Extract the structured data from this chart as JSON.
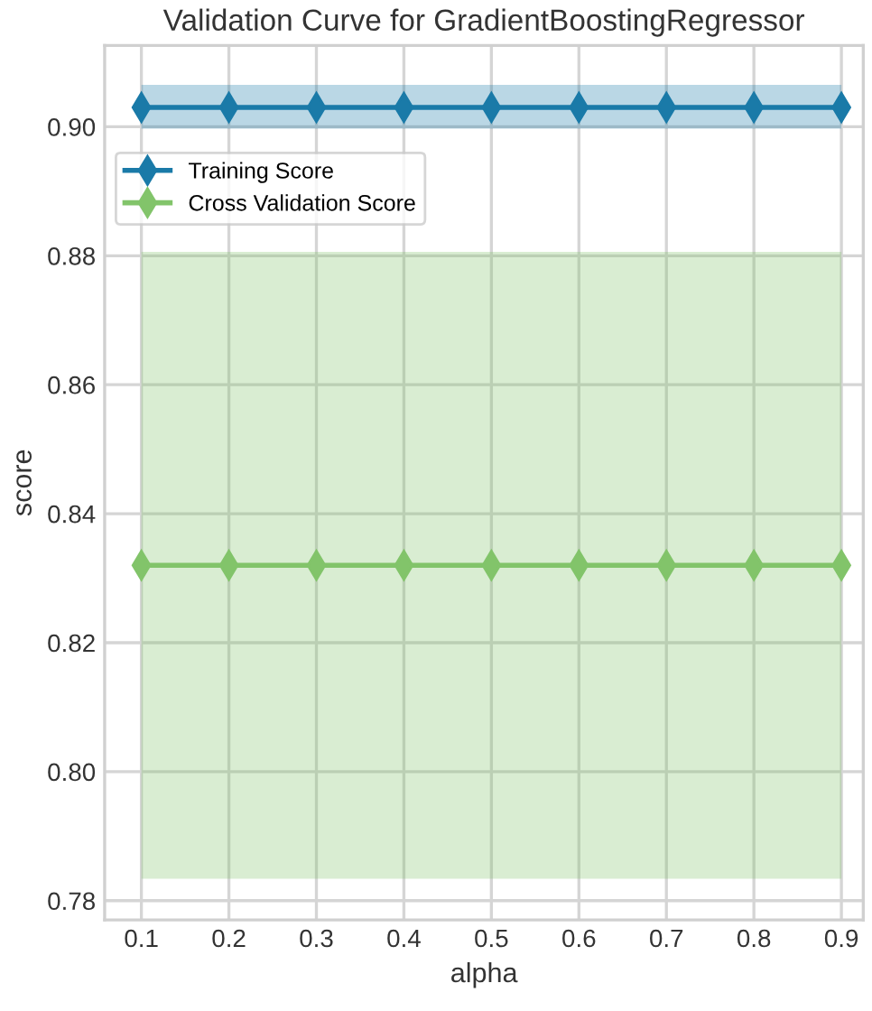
{
  "chart_data": {
    "type": "line",
    "title": "Validation Curve for GradientBoostingRegressor",
    "xlabel": "alpha",
    "ylabel": "score",
    "x": [
      0.1,
      0.2,
      0.3,
      0.4,
      0.5,
      0.6,
      0.7,
      0.8,
      0.9
    ],
    "series": [
      {
        "name": "Training Score",
        "color": "#1a7aa8",
        "values": [
          0.903,
          0.903,
          0.903,
          0.903,
          0.903,
          0.903,
          0.903,
          0.903,
          0.903
        ],
        "lower": [
          0.8997,
          0.8997,
          0.8997,
          0.8997,
          0.8997,
          0.8997,
          0.8997,
          0.8997,
          0.8997
        ],
        "upper": [
          0.9065,
          0.9065,
          0.9065,
          0.9065,
          0.9065,
          0.9065,
          0.9065,
          0.9065,
          0.9065
        ]
      },
      {
        "name": "Cross Validation Score",
        "color": "#82c46a",
        "values": [
          0.832,
          0.832,
          0.832,
          0.832,
          0.832,
          0.832,
          0.832,
          0.832,
          0.832
        ],
        "lower": [
          0.7834,
          0.7834,
          0.7834,
          0.7834,
          0.7834,
          0.7834,
          0.7834,
          0.7834,
          0.7834
        ],
        "upper": [
          0.8806,
          0.8806,
          0.8806,
          0.8806,
          0.8806,
          0.8806,
          0.8806,
          0.8806,
          0.8806
        ]
      }
    ],
    "xlim": [
      0.058,
      0.925
    ],
    "ylim": [
      0.777,
      0.9126
    ],
    "xticks": [
      0.1,
      0.2,
      0.3,
      0.4,
      0.5,
      0.6,
      0.7,
      0.8,
      0.9
    ],
    "yticks": [
      {
        "value": 0.78,
        "label": "0.78"
      },
      {
        "value": 0.8,
        "label": "0.80"
      },
      {
        "value": 0.82,
        "label": "0.82"
      },
      {
        "value": 0.84,
        "label": "0.84"
      },
      {
        "value": 0.86,
        "label": "0.86"
      },
      {
        "value": 0.88,
        "label": "0.88"
      },
      {
        "value": 0.9,
        "label": "0.90"
      }
    ],
    "grid": true,
    "legend": "upper left",
    "marker": "diamond",
    "line_style": "solid"
  }
}
